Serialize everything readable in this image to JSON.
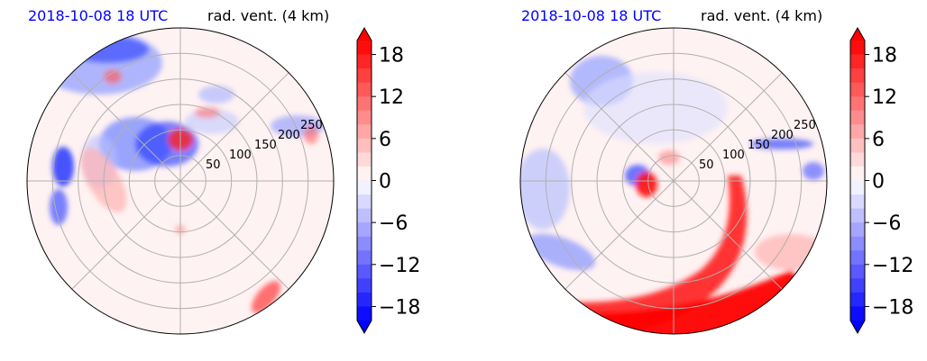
{
  "chart_data": [
    {
      "type": "heatmap",
      "title_left": "2018-10-08 18 UTC",
      "title_right": "rad. vent. (4 km)",
      "projection": "polar",
      "radial_ticks": [
        "50",
        "100",
        "150",
        "200",
        "250"
      ],
      "radial_range": [
        0,
        300
      ],
      "colorbar": {
        "range": [
          -20,
          20
        ],
        "ticks": [
          "18",
          "12",
          "6",
          "0",
          "−6",
          "−12",
          "−18"
        ],
        "tick_values": [
          18,
          12,
          6,
          0,
          -6,
          -12,
          -18
        ],
        "extend": "both"
      },
      "grid": true,
      "colors": {
        "positive": "#ff0000",
        "negative": "#0000ff",
        "neutral": "#ffffff",
        "grid": "#b0b0b0"
      }
    },
    {
      "type": "heatmap",
      "title_left": "2018-10-08 18 UTC",
      "title_right": "rad. vent. (4 km)",
      "projection": "polar",
      "radial_ticks": [
        "50",
        "100",
        "150",
        "200",
        "250"
      ],
      "radial_range": [
        0,
        300
      ],
      "colorbar": {
        "range": [
          -20,
          20
        ],
        "ticks": [
          "18",
          "12",
          "6",
          "0",
          "−6",
          "−12",
          "−18"
        ],
        "tick_values": [
          18,
          12,
          6,
          0,
          -6,
          -12,
          -18
        ],
        "extend": "both"
      },
      "grid": true,
      "colors": {
        "positive": "#ff0000",
        "negative": "#0000ff",
        "neutral": "#ffffff",
        "grid": "#b0b0b0"
      }
    }
  ]
}
